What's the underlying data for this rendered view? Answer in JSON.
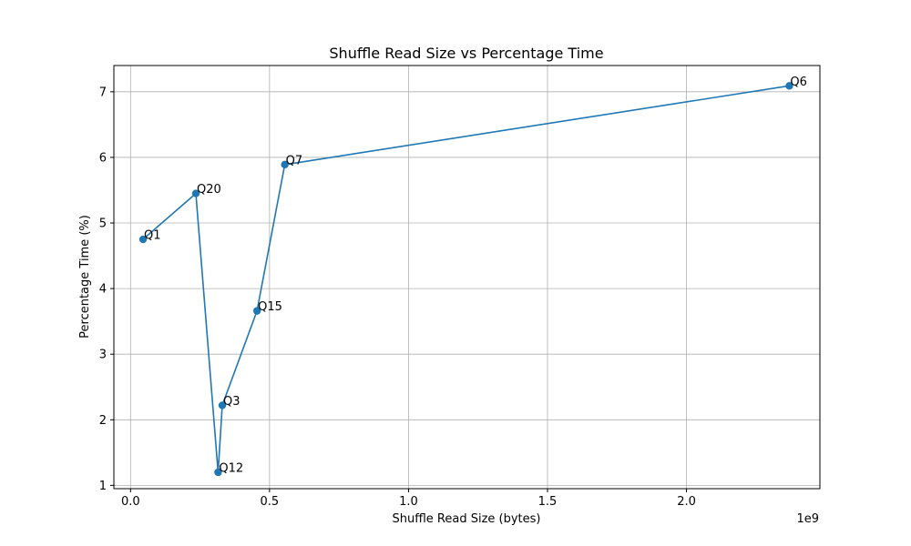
{
  "chart_data": {
    "type": "line",
    "title": "Shuffle Read Size vs Percentage Time",
    "xlabel": "Shuffle Read Size (bytes)",
    "ylabel": "Percentage Time (%)",
    "x_offset_label": "1e9",
    "xlim": [
      -0.06,
      2.48
    ],
    "ylim": [
      0.95,
      7.4
    ],
    "x_ticks": [
      0.0,
      0.5,
      1.0,
      1.5,
      2.0
    ],
    "x_tick_labels": [
      "0.0",
      "0.5",
      "1.0",
      "1.5",
      "2.0"
    ],
    "y_ticks": [
      1,
      2,
      3,
      4,
      5,
      6,
      7
    ],
    "y_tick_labels": [
      "1",
      "2",
      "3",
      "4",
      "5",
      "6",
      "7"
    ],
    "grid": true,
    "series": [
      {
        "color": "#1f77b4",
        "marker": "circle",
        "points": [
          {
            "label": "Q1",
            "x": 0.045,
            "y": 4.75
          },
          {
            "label": "Q20",
            "x": 0.235,
            "y": 5.45
          },
          {
            "label": "Q12",
            "x": 0.315,
            "y": 1.2
          },
          {
            "label": "Q3",
            "x": 0.33,
            "y": 2.22
          },
          {
            "label": "Q15",
            "x": 0.455,
            "y": 3.66
          },
          {
            "label": "Q7",
            "x": 0.555,
            "y": 5.89
          },
          {
            "label": "Q6",
            "x": 2.37,
            "y": 7.09
          }
        ]
      }
    ]
  }
}
